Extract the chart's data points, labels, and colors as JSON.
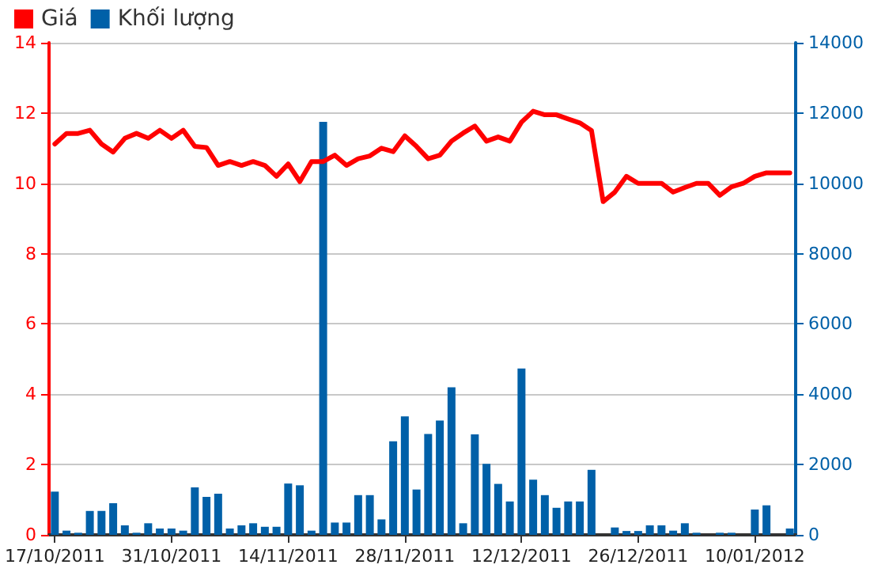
{
  "chart_data": {
    "type": "bar",
    "categories": [
      "17/10/2011",
      null,
      null,
      null,
      null,
      null,
      null,
      null,
      null,
      null,
      "31/10/2011",
      null,
      null,
      null,
      null,
      null,
      null,
      null,
      null,
      null,
      "14/11/2011",
      null,
      null,
      null,
      null,
      null,
      null,
      null,
      null,
      null,
      "28/11/2011",
      null,
      null,
      null,
      null,
      null,
      null,
      null,
      null,
      null,
      "12/12/2011",
      null,
      null,
      null,
      null,
      null,
      null,
      null,
      null,
      null,
      "26/12/2011",
      null,
      null,
      null,
      null,
      null,
      null,
      null,
      null,
      null,
      "10/01/2012",
      null,
      null,
      null
    ],
    "series": [
      {
        "name": "Giá",
        "type": "line",
        "axis": "y",
        "color": "#ff0000",
        "values": [
          11.12,
          11.42,
          11.42,
          11.51,
          11.12,
          10.89,
          11.28,
          11.42,
          11.28,
          11.51,
          11.28,
          11.51,
          11.05,
          11.02,
          10.51,
          10.62,
          10.51,
          10.62,
          10.51,
          10.2,
          10.55,
          10.05,
          10.62,
          10.62,
          10.8,
          10.51,
          10.7,
          10.78,
          11.0,
          10.9,
          11.35,
          11.05,
          10.7,
          10.8,
          11.2,
          11.43,
          11.63,
          11.2,
          11.32,
          11.2,
          11.74,
          12.05,
          11.95,
          11.95,
          11.83,
          11.72,
          11.5,
          9.48,
          9.75,
          10.2,
          10.0,
          10.0,
          10.0,
          9.75,
          9.88,
          10.0,
          10.0,
          9.66,
          9.9,
          10.0,
          10.2,
          10.3,
          10.3,
          10.3
        ]
      },
      {
        "name": "Khối lượng",
        "axis": "y2",
        "color": "#0060a8",
        "values": [
          1230,
          120,
          60,
          680,
          680,
          900,
          270,
          60,
          330,
          180,
          180,
          120,
          1350,
          1080,
          1170,
          180,
          270,
          330,
          230,
          230,
          1460,
          1410,
          120,
          11750,
          350,
          350,
          1130,
          1130,
          440,
          2660,
          3370,
          1290,
          2870,
          3250,
          4200,
          330,
          2860,
          2020,
          1450,
          950,
          4730,
          1570,
          1130,
          770,
          950,
          950,
          1850,
          0,
          210,
          110,
          110,
          270,
          270,
          120,
          330,
          60,
          0,
          60,
          60,
          0,
          720,
          840,
          0,
          180
        ]
      }
    ],
    "ylim": [
      0,
      14
    ],
    "yticks": [
      0,
      2,
      4,
      6,
      8,
      10,
      12,
      14
    ],
    "y2lim": [
      0,
      14000
    ],
    "y2ticks": [
      0,
      2000,
      4000,
      6000,
      8000,
      10000,
      12000,
      14000
    ],
    "grid": "y",
    "legend": "top left",
    "marker": "none",
    "line_style": "solid"
  }
}
